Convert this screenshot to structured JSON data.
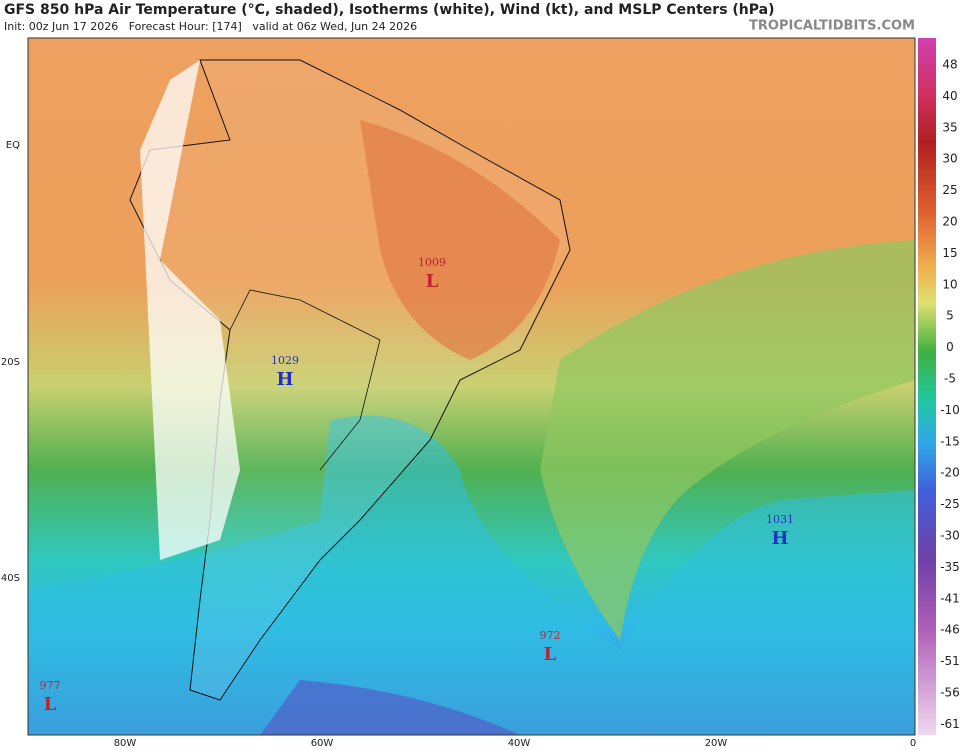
{
  "header": {
    "title": "GFS 850 hPa Air Temperature (°C, shaded), Isotherms (white), Wind (kt), and MSLP Centers (hPa)",
    "init": "Init: 00z Jun 17 2026   Forecast Hour: [174]   valid at 06z Wed, Jun 24 2026",
    "site": "TROPICALTIDBITS.COM"
  },
  "colorbar": {
    "labels": [
      "48",
      "40",
      "35",
      "30",
      "25",
      "20",
      "15",
      "10",
      "5",
      "0",
      "-5",
      "-10",
      "-15",
      "-20",
      "-25",
      "-30",
      "-35",
      "-41",
      "-46",
      "-51",
      "-56",
      "-61"
    ]
  },
  "axes": {
    "lat_labels": [
      "EQ",
      "20S",
      "40S"
    ],
    "lon_labels": [
      "80W",
      "60W",
      "40W",
      "20W",
      "0"
    ]
  },
  "centers": [
    {
      "value": "1009",
      "letter": "L"
    },
    {
      "value": "1029",
      "letter": "H"
    },
    {
      "value": "1031",
      "letter": "H"
    },
    {
      "value": "972",
      "letter": "L"
    },
    {
      "value": "977",
      "letter": "L"
    }
  ]
}
